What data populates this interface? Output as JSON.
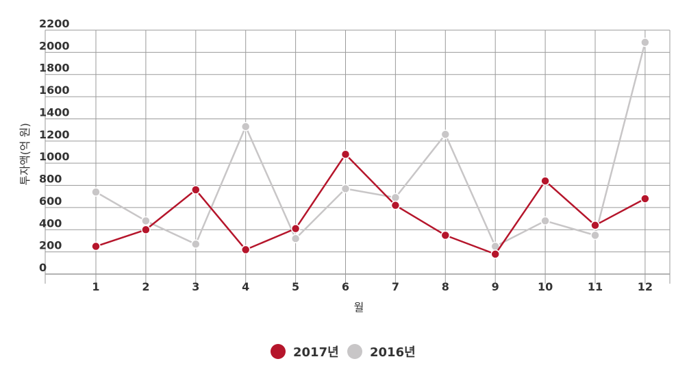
{
  "chart_data": {
    "type": "line",
    "categories": [
      "1",
      "2",
      "3",
      "4",
      "5",
      "6",
      "7",
      "8",
      "9",
      "10",
      "11",
      "12"
    ],
    "series": [
      {
        "name": "2016년",
        "color": "#c8c6c7",
        "values": [
          740,
          480,
          270,
          1330,
          320,
          770,
          690,
          1260,
          250,
          480,
          350,
          2090
        ]
      },
      {
        "name": "2017년",
        "color": "#b5152b",
        "values": [
          250,
          400,
          760,
          220,
          410,
          1080,
          620,
          350,
          180,
          840,
          440,
          680
        ]
      }
    ],
    "xlabel": "월",
    "ylabel": "투자액(억 원)",
    "ylim": [
      0,
      2200
    ],
    "yticks": [
      0,
      200,
      400,
      600,
      800,
      1000,
      1200,
      1400,
      1600,
      1800,
      2000,
      2200
    ],
    "grid": true,
    "legend": "bottom-center"
  }
}
